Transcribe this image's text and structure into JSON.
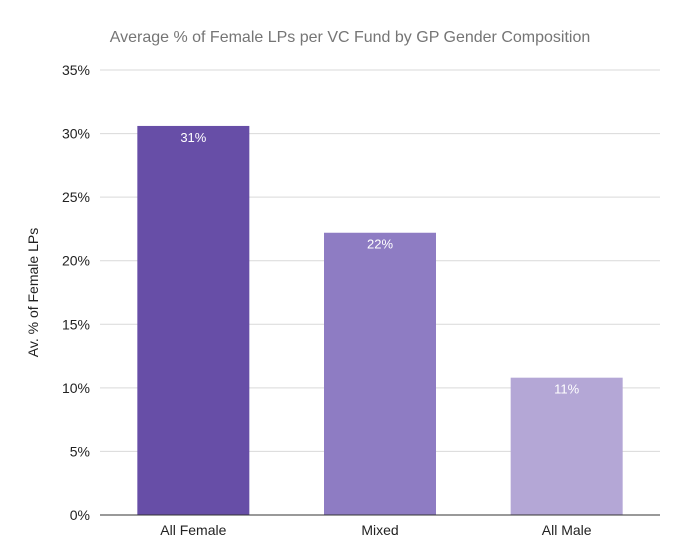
{
  "chart_data": {
    "type": "bar",
    "title": "Average % of Female LPs per VC Fund by GP Gender Composition",
    "ylabel": "Av. % of Female LPs",
    "xlabel": "",
    "categories": [
      "All Female",
      "Mixed",
      "All Male"
    ],
    "values": [
      30.6,
      22.2,
      10.8
    ],
    "data_labels": [
      "31%",
      "22%",
      "11%"
    ],
    "colors": [
      "#674ea7",
      "#8e7cc3",
      "#b4a7d6"
    ],
    "ylim": [
      0,
      35
    ],
    "yticks": [
      0,
      5,
      10,
      15,
      20,
      25,
      30,
      35
    ],
    "ytick_labels": [
      "0%",
      "5%",
      "10%",
      "15%",
      "20%",
      "25%",
      "30%",
      "35%"
    ],
    "grid": true,
    "legend": "none"
  }
}
